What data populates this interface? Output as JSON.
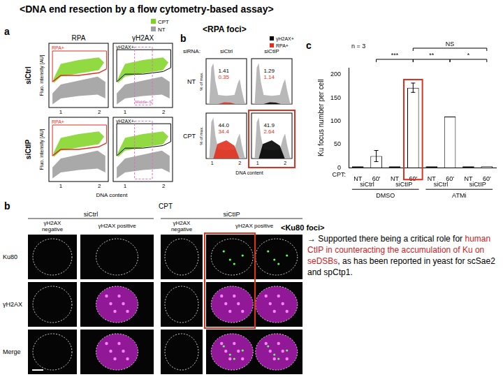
{
  "title": "<DNA end resection by a flow cytometry-based assay>",
  "subtitle": "<RPA foci>",
  "panel_a": {
    "label": "a",
    "columns": [
      "RPA",
      "γH2AX"
    ],
    "rows": [
      "siCtrl",
      "siCtIP"
    ],
    "gates": [
      "RPA+",
      "γH2AX+"
    ],
    "gate_middle": "Middle-S",
    "legend": [
      {
        "name": "CPT",
        "color": "#7ed321"
      },
      {
        "name": "NT",
        "color": "#a0a0a0"
      }
    ],
    "y_label": "Fluo. intensity [AU]",
    "x_label": "DNA content",
    "x_ticks": [
      "1",
      "2"
    ]
  },
  "panel_b_flow": {
    "label": "b",
    "header": "siRNA:",
    "columns": [
      "siCtrl",
      "siCtIP"
    ],
    "legend": [
      {
        "name": "γH2AX+",
        "color": "#000000"
      },
      {
        "name": "RPA+",
        "color": "#e0301e"
      }
    ],
    "rows": [
      {
        "name": "NT",
        "cells": [
          {
            "gh2ax": "1.41",
            "rpa": "0.35"
          },
          {
            "gh2ax": "1.29",
            "rpa": "1.14"
          }
        ]
      },
      {
        "name": "CPT",
        "cells": [
          {
            "gh2ax": "44.0",
            "rpa": "34.4"
          },
          {
            "gh2ax": "41.9",
            "rpa": "2.64"
          }
        ]
      }
    ],
    "y_label": "% of max.",
    "x_label": "DNA content",
    "x_ticks": [
      "1",
      "2"
    ]
  },
  "chart_data": {
    "type": "bar",
    "panel": "c",
    "y_label": "Ku focus number per cell",
    "n_label": "n = 3",
    "category_prefix": "CPT:",
    "categories": [
      "NT",
      "60'",
      "NT",
      "60'",
      "NT",
      "60'",
      "NT",
      "60'"
    ],
    "values": [
      3,
      25,
      3,
      172,
      3,
      110,
      3,
      3
    ],
    "errors": [
      null,
      12,
      null,
      10,
      null,
      null,
      null,
      null
    ],
    "colors": [
      "#000000",
      "#ffffff",
      "#000000",
      "#ffffff",
      "#000000",
      "#ffffff",
      "#000000",
      "#ffffff"
    ],
    "sirna": [
      {
        "label": "siCtrl",
        "from": 0,
        "to": 1
      },
      {
        "label": "siCtIP",
        "from": 2,
        "to": 3
      },
      {
        "label": "siCtrl",
        "from": 4,
        "to": 5
      },
      {
        "label": "siCtIP",
        "from": 6,
        "to": 7
      }
    ],
    "treatments": [
      {
        "label": "DMSO",
        "from": 0,
        "to": 3
      },
      {
        "label": "ATMi",
        "from": 4,
        "to": 7
      }
    ],
    "significance": [
      {
        "label": "NS",
        "from": 3,
        "to": 7
      },
      {
        "label": "***",
        "from": 1,
        "to": 3
      },
      {
        "label": "**",
        "from": 3,
        "to": 5
      },
      {
        "label": "*",
        "from": 5,
        "to": 7
      }
    ],
    "ylim": [
      0,
      215
    ],
    "yticks": [
      0,
      50,
      100,
      150,
      200
    ],
    "grid": false
  },
  "images": {
    "label": "b",
    "treatment": "CPT",
    "groups": [
      {
        "label": "siCtrl",
        "columns": [
          "γH2AX negative",
          "γH2AX positive"
        ]
      },
      {
        "label": "siCtIP",
        "columns": [
          "γH2AX negative",
          "γH2AX positive"
        ]
      }
    ],
    "rows": [
      "Ku80",
      "γH2AX",
      "Merge"
    ]
  },
  "annotation": {
    "title": "<Ku80 foci>",
    "segments": [
      {
        "text": "→ Supported there being a critical role for ",
        "highlight": false
      },
      {
        "text": "human CtIP in counteracting the accumulation of Ku on seDSBs",
        "highlight": true
      },
      {
        "text": ", as has been reported in yeast for scSae2 and spCtp1.",
        "highlight": false
      }
    ]
  }
}
